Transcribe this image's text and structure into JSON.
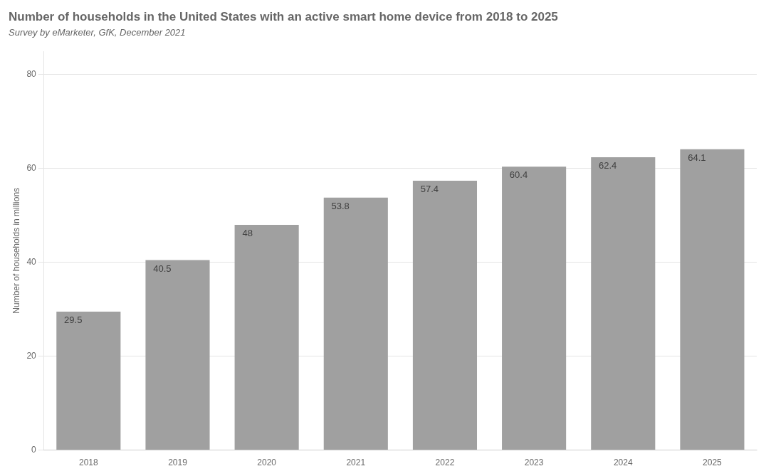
{
  "chart_data": {
    "type": "bar",
    "title": "Number of households in the United States with an active smart home device from 2018 to 2025",
    "subtitle": "Survey by eMarketer, GfK, December 2021",
    "categories": [
      "2018",
      "2019",
      "2020",
      "2021",
      "2022",
      "2023",
      "2024",
      "2025"
    ],
    "values": [
      29.5,
      40.5,
      48.0,
      53.8,
      57.4,
      60.4,
      62.4,
      64.1
    ],
    "color": "#a0a0a0",
    "y_label": "Number of households in millions",
    "ylim": [
      0,
      85
    ],
    "yticks": [
      0,
      20,
      40,
      60,
      80
    ],
    "grid": true,
    "data_labels": true
  }
}
